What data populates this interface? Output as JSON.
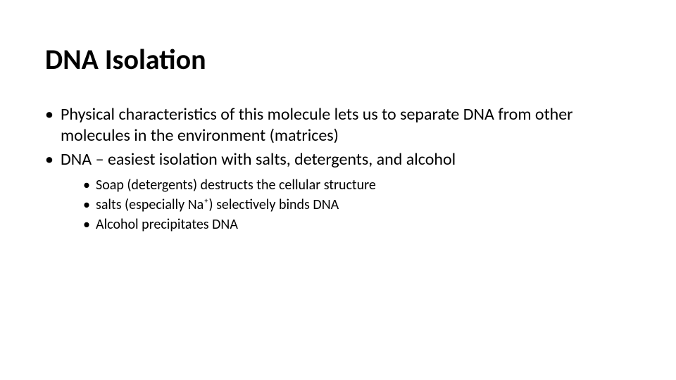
{
  "slide": {
    "title": "DNA Isolation",
    "bullets": [
      {
        "text": "Physical characteristics of this molecule lets us to separate DNA from other molecules in the environment (matrices)"
      },
      {
        "text": "DNA – easiest isolation with salts, detergents, and alcohol",
        "sub": [
          "Soap (detergents) destructs the cellular structure",
          "salts (especially Na⁺) selectively binds DNA",
          "Alcohol precipitates DNA"
        ]
      }
    ]
  },
  "style": {
    "background_color": "#ffffff",
    "text_color": "#000000",
    "title_fontsize": 40,
    "title_fontweight": 700,
    "body_fontsize": 24,
    "sub_fontsize": 20,
    "font_family": "Calibri"
  }
}
